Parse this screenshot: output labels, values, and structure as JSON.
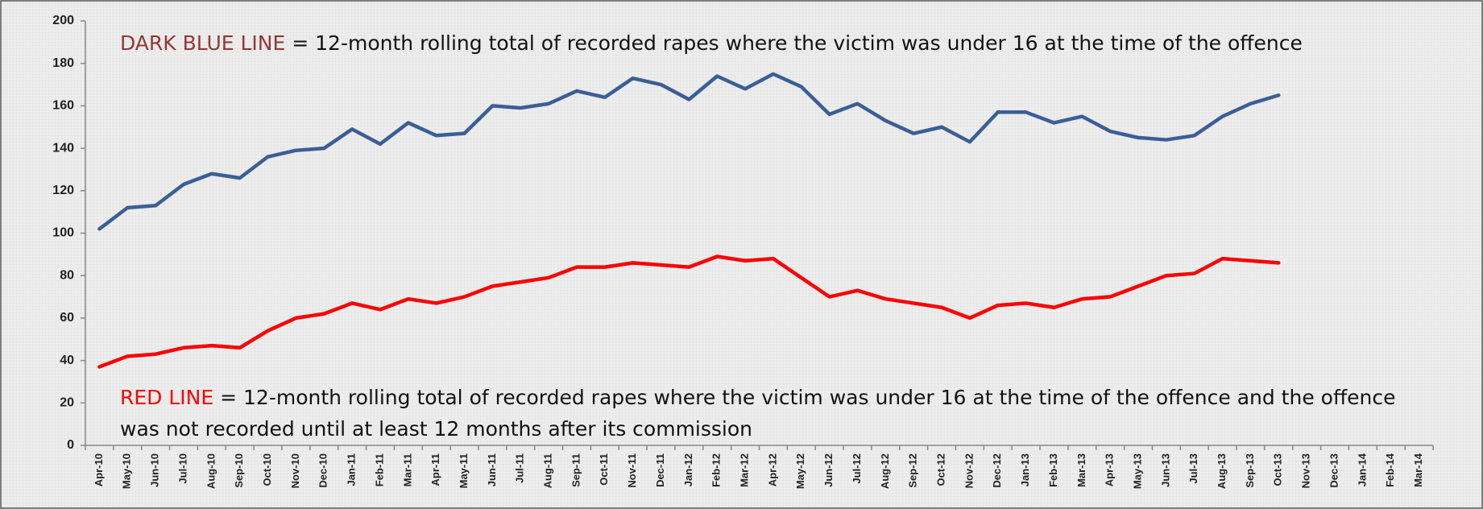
{
  "chart_data": {
    "type": "line",
    "categories": [
      "Apr-10",
      "May-10",
      "Jun-10",
      "Jul-10",
      "Aug-10",
      "Sep-10",
      "Oct-10",
      "Nov-10",
      "Dec-10",
      "Jan-11",
      "Feb-11",
      "Mar-11",
      "Apr-11",
      "May-11",
      "Jun-11",
      "Jul-11",
      "Aug-11",
      "Sep-11",
      "Oct-11",
      "Nov-11",
      "Dec-11",
      "Jan-12",
      "Feb-12",
      "Mar-12",
      "Apr-12",
      "May-12",
      "Jun-12",
      "Jul-12",
      "Aug-12",
      "Sep-12",
      "Oct-12",
      "Nov-12",
      "Dec-12",
      "Jan-13",
      "Feb-13",
      "Mar-13",
      "Apr-13",
      "May-13",
      "Jun-13",
      "Jul-13",
      "Aug-13",
      "Sep-13",
      "Oct-13",
      "Nov-13",
      "Dec-13",
      "Jan-14",
      "Feb-14",
      "Mar-14"
    ],
    "series": [
      {
        "color": "#3a5f96",
        "values": [
          102,
          112,
          113,
          123,
          128,
          126,
          136,
          139,
          140,
          149,
          142,
          152,
          146,
          147,
          160,
          159,
          161,
          167,
          164,
          173,
          170,
          163,
          174,
          168,
          175,
          169,
          156,
          161,
          153,
          147,
          150,
          143,
          157,
          157,
          152,
          155,
          148,
          145,
          144,
          146,
          155,
          161,
          165,
          null,
          null,
          null,
          null,
          null
        ]
      },
      {
        "color": "#ff0000",
        "values": [
          37,
          42,
          43,
          46,
          47,
          46,
          54,
          60,
          62,
          67,
          64,
          69,
          67,
          70,
          75,
          77,
          79,
          84,
          84,
          86,
          85,
          84,
          89,
          87,
          88,
          79,
          70,
          73,
          69,
          67,
          65,
          60,
          66,
          67,
          65,
          69,
          70,
          75,
          80,
          81,
          88,
          87,
          86,
          null,
          null,
          null,
          null,
          null
        ]
      }
    ],
    "ylim": [
      0,
      200
    ],
    "yticks": [
      0,
      20,
      40,
      60,
      80,
      100,
      120,
      140,
      160,
      180,
      200
    ],
    "annotations": [
      {
        "label": "DARK BLUE LINE",
        "label_color": "#953735",
        "lines": [
          " = 12-month rolling total of recorded rapes where the victim was under 16 at the time of the offence"
        ]
      },
      {
        "label": "RED LINE",
        "label_color": "#ff0000",
        "lines": [
          " = 12-month rolling total of recorded rapes where the victim was under 16 at the time of the offence and the offence",
          "was not recorded until at least 12 months after its commission"
        ]
      }
    ]
  }
}
